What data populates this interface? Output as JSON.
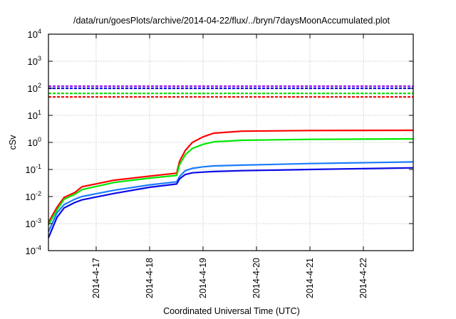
{
  "chart_data": {
    "type": "line",
    "title": "/data/run/goesPlots/archive/2014-04-22/flux/../bryn/7daysMoonAccumulated.plot",
    "xlabel": "Coordinated Universal Time (UTC)",
    "ylabel": "cSv",
    "x_unit": "day of April 2014",
    "xlim": [
      16.107,
      22.933
    ],
    "ylim": [
      0.0001,
      10000
    ],
    "yscale": "log",
    "grid": true,
    "legend": "none",
    "x_ticks": [
      {
        "value": 17,
        "label": "2014-4-17"
      },
      {
        "value": 18,
        "label": "2014-4-18"
      },
      {
        "value": 19,
        "label": "2014-4-19"
      },
      {
        "value": 20,
        "label": "2014-4-20"
      },
      {
        "value": 21,
        "label": "2014-4-21"
      },
      {
        "value": 22,
        "label": "2014-4-22"
      }
    ],
    "y_ticks": [
      {
        "exp": -4,
        "base": "10",
        "sup": "-4"
      },
      {
        "exp": -3,
        "base": "10",
        "sup": "-3"
      },
      {
        "exp": -2,
        "base": "10",
        "sup": "-2"
      },
      {
        "exp": -1,
        "base": "10",
        "sup": "-1"
      },
      {
        "exp": 0,
        "base": "10",
        "sup": "0"
      },
      {
        "exp": 1,
        "base": "10",
        "sup": "1"
      },
      {
        "exp": 2,
        "base": "10",
        "sup": "2"
      },
      {
        "exp": 3,
        "base": "10",
        "sup": "3"
      },
      {
        "exp": 4,
        "base": "10",
        "sup": "4"
      }
    ],
    "thresholds": [
      {
        "value": 120,
        "color": "#9a1cf0"
      },
      {
        "value": 100,
        "color": "#1010e0"
      },
      {
        "value": 65,
        "color": "#10e010"
      },
      {
        "value": 48,
        "color": "#f01010"
      }
    ],
    "x": [
      16.107,
      16.267,
      16.4,
      16.6,
      16.733,
      17.333,
      18.0,
      18.507,
      18.56,
      18.667,
      18.8,
      19.0,
      19.2,
      19.733,
      21.0,
      22.933
    ],
    "series": [
      {
        "name": "red",
        "color": "#ff0000",
        "values": [
          0.0011,
          0.004,
          0.0093,
          0.014,
          0.023,
          0.04,
          0.057,
          0.073,
          0.2,
          0.5,
          1.0,
          1.6,
          2.2,
          2.6,
          2.75,
          2.8
        ]
      },
      {
        "name": "green",
        "color": "#00e800",
        "values": [
          0.0009,
          0.0032,
          0.008,
          0.012,
          0.018,
          0.033,
          0.048,
          0.06,
          0.15,
          0.35,
          0.6,
          0.85,
          1.05,
          1.2,
          1.3,
          1.35
        ]
      },
      {
        "name": "light-blue",
        "color": "#1a7cff",
        "values": [
          0.0005,
          0.0025,
          0.005,
          0.008,
          0.01,
          0.017,
          0.027,
          0.035,
          0.055,
          0.09,
          0.11,
          0.125,
          0.135,
          0.145,
          0.165,
          0.19
        ]
      },
      {
        "name": "dark-blue",
        "color": "#0a0ae8",
        "values": [
          0.0003,
          0.0017,
          0.0038,
          0.006,
          0.0075,
          0.013,
          0.022,
          0.029,
          0.045,
          0.065,
          0.075,
          0.08,
          0.084,
          0.09,
          0.1,
          0.115
        ]
      }
    ]
  }
}
